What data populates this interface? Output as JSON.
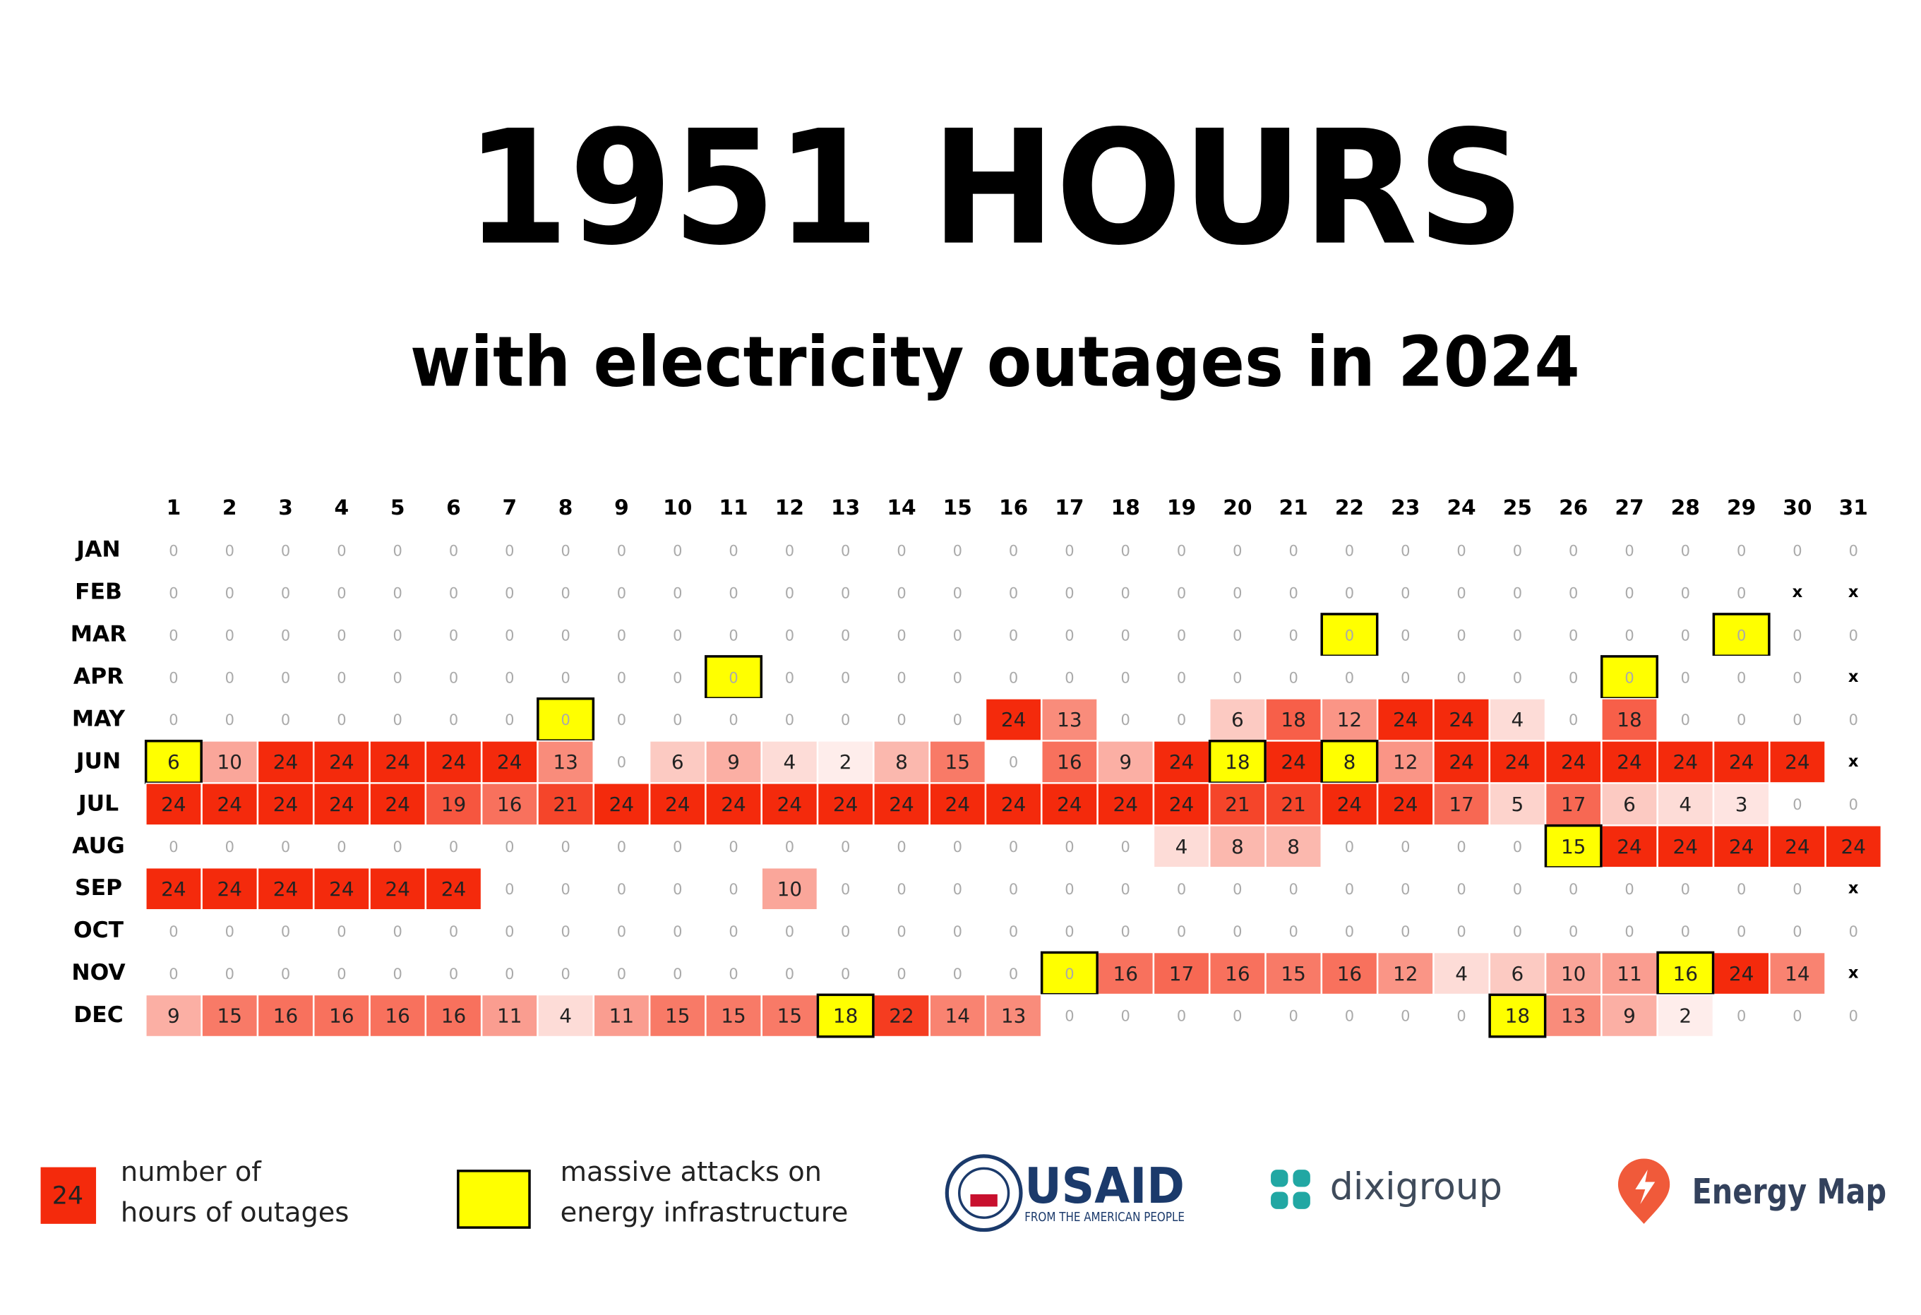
{
  "chart_data": {
    "type": "heatmap",
    "title": "1951 HOURS",
    "subtitle": "with electricity outages in 2024",
    "x": [
      1,
      2,
      3,
      4,
      5,
      6,
      7,
      8,
      9,
      10,
      11,
      12,
      13,
      14,
      15,
      16,
      17,
      18,
      19,
      20,
      21,
      22,
      23,
      24,
      25,
      26,
      27,
      28,
      29,
      30,
      31
    ],
    "missing_label": "x",
    "zlim": [
      0,
      24
    ],
    "color_scale": [
      "#ffffff",
      "#f42a0c"
    ],
    "attack_color": "#ffff00",
    "rows": [
      {
        "name": "JAN",
        "values": [
          0,
          0,
          0,
          0,
          0,
          0,
          0,
          0,
          0,
          0,
          0,
          0,
          0,
          0,
          0,
          0,
          0,
          0,
          0,
          0,
          0,
          0,
          0,
          0,
          0,
          0,
          0,
          0,
          0,
          0,
          0
        ],
        "attack_days": []
      },
      {
        "name": "FEB",
        "values": [
          0,
          0,
          0,
          0,
          0,
          0,
          0,
          0,
          0,
          0,
          0,
          0,
          0,
          0,
          0,
          0,
          0,
          0,
          0,
          0,
          0,
          0,
          0,
          0,
          0,
          0,
          0,
          0,
          0,
          null,
          null
        ],
        "attack_days": []
      },
      {
        "name": "MAR",
        "values": [
          0,
          0,
          0,
          0,
          0,
          0,
          0,
          0,
          0,
          0,
          0,
          0,
          0,
          0,
          0,
          0,
          0,
          0,
          0,
          0,
          0,
          0,
          0,
          0,
          0,
          0,
          0,
          0,
          0,
          0,
          0
        ],
        "attack_days": [
          22,
          29
        ]
      },
      {
        "name": "APR",
        "values": [
          0,
          0,
          0,
          0,
          0,
          0,
          0,
          0,
          0,
          0,
          0,
          0,
          0,
          0,
          0,
          0,
          0,
          0,
          0,
          0,
          0,
          0,
          0,
          0,
          0,
          0,
          0,
          0,
          0,
          0,
          null
        ],
        "attack_days": [
          11,
          27
        ]
      },
      {
        "name": "MAY",
        "values": [
          0,
          0,
          0,
          0,
          0,
          0,
          0,
          0,
          0,
          0,
          0,
          0,
          0,
          0,
          0,
          24,
          13,
          0,
          0,
          6,
          18,
          12,
          24,
          24,
          4,
          0,
          18,
          0,
          0,
          0,
          0
        ],
        "attack_days": [
          8
        ]
      },
      {
        "name": "JUN",
        "values": [
          6,
          10,
          24,
          24,
          24,
          24,
          24,
          13,
          0,
          6,
          9,
          4,
          2,
          8,
          15,
          0,
          16,
          9,
          24,
          18,
          24,
          8,
          12,
          24,
          24,
          24,
          24,
          24,
          24,
          24,
          null
        ],
        "attack_days": [
          1,
          20,
          22
        ]
      },
      {
        "name": "JUL",
        "values": [
          24,
          24,
          24,
          24,
          24,
          19,
          16,
          21,
          24,
          24,
          24,
          24,
          24,
          24,
          24,
          24,
          24,
          24,
          24,
          21,
          21,
          24,
          24,
          17,
          5,
          17,
          6,
          4,
          3,
          0,
          0
        ],
        "attack_days": []
      },
      {
        "name": "AUG",
        "values": [
          0,
          0,
          0,
          0,
          0,
          0,
          0,
          0,
          0,
          0,
          0,
          0,
          0,
          0,
          0,
          0,
          0,
          0,
          4,
          8,
          8,
          0,
          0,
          0,
          0,
          15,
          24,
          24,
          24,
          24,
          24
        ],
        "attack_days": [
          26
        ]
      },
      {
        "name": "SEP",
        "values": [
          24,
          24,
          24,
          24,
          24,
          24,
          0,
          0,
          0,
          0,
          0,
          10,
          0,
          0,
          0,
          0,
          0,
          0,
          0,
          0,
          0,
          0,
          0,
          0,
          0,
          0,
          0,
          0,
          0,
          0,
          null
        ],
        "attack_days": []
      },
      {
        "name": "OCT",
        "values": [
          0,
          0,
          0,
          0,
          0,
          0,
          0,
          0,
          0,
          0,
          0,
          0,
          0,
          0,
          0,
          0,
          0,
          0,
          0,
          0,
          0,
          0,
          0,
          0,
          0,
          0,
          0,
          0,
          0,
          0,
          0
        ],
        "attack_days": []
      },
      {
        "name": "NOV",
        "values": [
          0,
          0,
          0,
          0,
          0,
          0,
          0,
          0,
          0,
          0,
          0,
          0,
          0,
          0,
          0,
          0,
          0,
          16,
          17,
          16,
          15,
          16,
          12,
          4,
          6,
          10,
          11,
          16,
          24,
          14,
          null
        ],
        "attack_days": [
          17,
          28
        ]
      },
      {
        "name": "DEC",
        "values": [
          9,
          15,
          16,
          16,
          16,
          16,
          11,
          4,
          11,
          15,
          15,
          15,
          18,
          22,
          14,
          13,
          0,
          0,
          0,
          0,
          0,
          0,
          0,
          0,
          18,
          13,
          9,
          2,
          0,
          0,
          0
        ],
        "attack_days": [
          13,
          25
        ]
      }
    ],
    "legend": {
      "sample_value": 24,
      "hours_label": [
        "number of",
        "hours of outages"
      ],
      "attack_label": [
        "massive attacks on",
        "energy infrastructure"
      ]
    }
  },
  "logos": {
    "usaid": "USAID",
    "usaid_tagline": "FROM THE AMERICAN PEOPLE",
    "dixigroup": "dixigroup",
    "energy_map": "Energy Map"
  }
}
